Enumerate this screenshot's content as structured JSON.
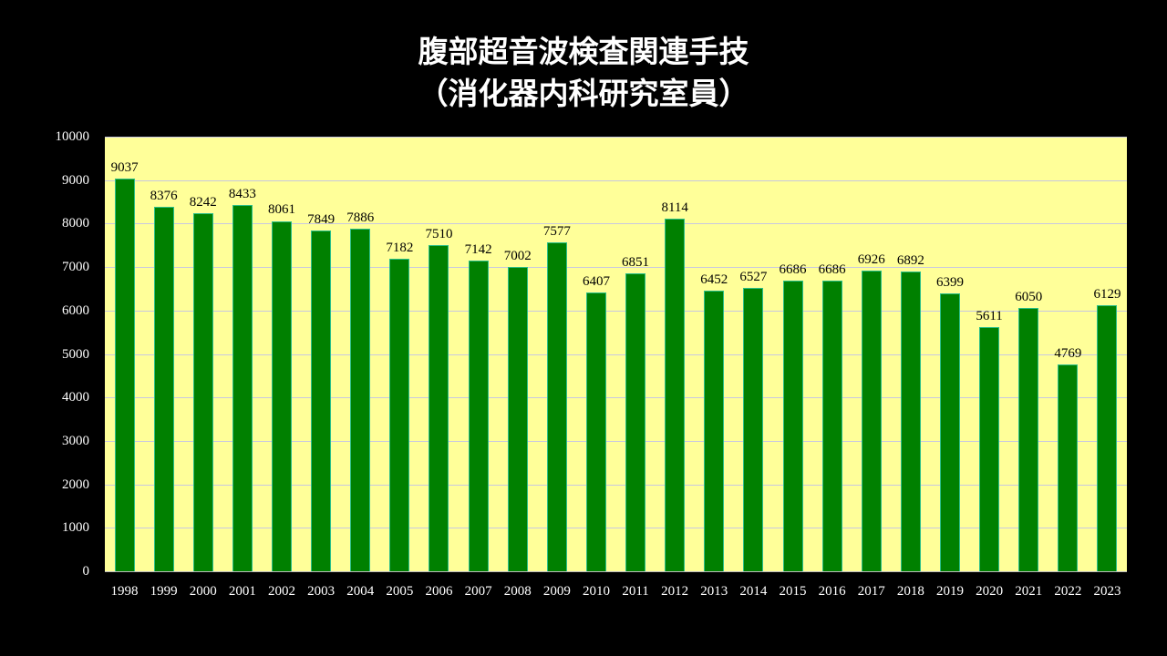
{
  "title": {
    "line1": "腹部超音波検査関連手技",
    "line2": "（消化器内科研究室員）"
  },
  "colors": {
    "background": "#000000",
    "plot_background": "#ffff99",
    "bar_fill": "#008000",
    "bar_edge": "#2bbf8a",
    "gridline": "#c8c8e0"
  },
  "chart_data": {
    "type": "bar",
    "title": "腹部超音波検査関連手技（消化器内科研究室員）",
    "xlabel": "",
    "ylabel": "",
    "ylim": [
      0,
      10000
    ],
    "yticks": [
      "0",
      "1000",
      "2000",
      "3000",
      "4000",
      "5000",
      "6000",
      "7000",
      "8000",
      "9000",
      "10000"
    ],
    "grid": true,
    "legend": null,
    "categories": [
      "1998",
      "1999",
      "2000",
      "2001",
      "2002",
      "2003",
      "2004",
      "2005",
      "2006",
      "2007",
      "2008",
      "2009",
      "2010",
      "2011",
      "2012",
      "2013",
      "2014",
      "2015",
      "2016",
      "2017",
      "2018",
      "2019",
      "2020",
      "2021",
      "2022",
      "2023"
    ],
    "values": [
      9037,
      8376,
      8242,
      8433,
      8061,
      7849,
      7886,
      7182,
      7510,
      7142,
      7002,
      7577,
      6407,
      6851,
      8114,
      6452,
      6527,
      6686,
      6686,
      6926,
      6892,
      6399,
      5611,
      6050,
      4769,
      6129
    ],
    "data_labels": [
      "9037",
      "8376",
      "8242",
      "8433",
      "8061",
      "7849",
      "7886",
      "7182",
      "7510",
      "7142",
      "7002",
      "7577",
      "6407",
      "6851",
      "8114",
      "6452",
      "6527",
      "6686",
      "6686",
      "6926",
      "6892",
      "6399",
      "5611",
      "6050",
      "4769",
      "6129"
    ]
  }
}
